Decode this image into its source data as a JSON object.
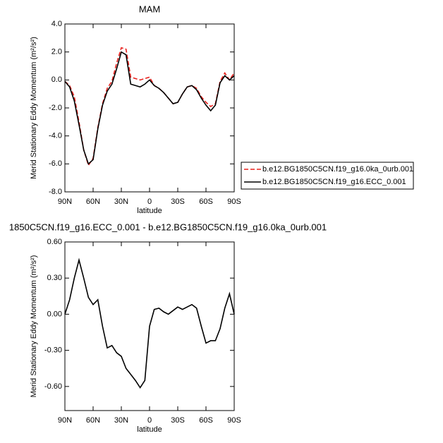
{
  "chart_data": [
    {
      "type": "line",
      "title": "MAM",
      "xlabel": "latitude",
      "ylabel": "Merid Stationary Eddy Momentum (m²/s²)",
      "x": [
        90,
        85,
        80,
        75,
        70,
        65,
        60,
        55,
        50,
        45,
        40,
        35,
        30,
        25,
        20,
        15,
        10,
        5,
        0,
        -5,
        -10,
        -15,
        -20,
        -25,
        -30,
        -35,
        -40,
        -45,
        -50,
        -55,
        -60,
        -65,
        -70,
        -75,
        -80,
        -85,
        -90
      ],
      "xlim": [
        90,
        -90
      ],
      "xticks": [
        {
          "value": 90,
          "label": "90N"
        },
        {
          "value": 60,
          "label": "60N"
        },
        {
          "value": 30,
          "label": "30N"
        },
        0,
        {
          "value": -30,
          "label": "30S"
        },
        {
          "value": -60,
          "label": "60S"
        },
        {
          "value": -90,
          "label": "90S"
        }
      ],
      "ylim": [
        -8,
        4
      ],
      "yticks": [
        {
          "value": -8,
          "label": "-8.0"
        },
        {
          "value": -6,
          "label": "-6.0"
        },
        {
          "value": -4,
          "label": "-4.0"
        },
        {
          "value": -2,
          "label": "-2.0"
        },
        {
          "value": 0,
          "label": "0.0"
        },
        {
          "value": 2,
          "label": "2.0"
        },
        {
          "value": 4,
          "label": "4.0"
        }
      ],
      "legend": "outside-right-bottom",
      "series": [
        {
          "name": "b.e12.BG1850C5CN.f19_g16.0ka_0urb.001",
          "color": "#e8201c",
          "style": "dashed",
          "values": [
            -0.1,
            -0.4,
            -1.2,
            -3.0,
            -5.0,
            -6.1,
            -5.6,
            -3.4,
            -1.7,
            -0.6,
            -0.1,
            1.2,
            2.3,
            2.2,
            0.2,
            0.1,
            0.0,
            0.1,
            0.2,
            -0.4,
            -0.6,
            -0.9,
            -1.3,
            -1.7,
            -1.6,
            -1.0,
            -0.5,
            -0.4,
            -0.6,
            -1.2,
            -1.6,
            -1.9,
            -1.7,
            -0.1,
            0.5,
            0.0,
            0.5
          ]
        },
        {
          "name": "b.e12.BG1850C5CN.f19_g16.ECC_0.001",
          "color": "#000000",
          "style": "solid",
          "values": [
            -0.1,
            -0.5,
            -1.5,
            -3.2,
            -5.0,
            -6.0,
            -5.7,
            -3.5,
            -1.8,
            -0.8,
            -0.3,
            0.8,
            2.0,
            1.8,
            -0.3,
            -0.4,
            -0.5,
            -0.3,
            0.0,
            -0.4,
            -0.6,
            -0.9,
            -1.3,
            -1.7,
            -1.6,
            -1.0,
            -0.5,
            -0.4,
            -0.7,
            -1.3,
            -1.8,
            -2.2,
            -1.8,
            -0.2,
            0.3,
            0.0,
            0.3
          ]
        }
      ]
    },
    {
      "type": "line",
      "title": "1850C5CN.f19_g16.ECC_0.001 - b.e12.BG1850C5CN.f19_g16.0ka_0urb.001",
      "xlabel": "latitude",
      "ylabel": "Merid Stationary Eddy Momentum (m²/s²)",
      "x": [
        90,
        85,
        80,
        75,
        70,
        65,
        60,
        55,
        50,
        45,
        40,
        35,
        30,
        25,
        20,
        15,
        10,
        5,
        0,
        -5,
        -10,
        -15,
        -20,
        -25,
        -30,
        -35,
        -40,
        -45,
        -50,
        -55,
        -60,
        -65,
        -70,
        -75,
        -80,
        -85,
        -90
      ],
      "xlim": [
        90,
        -90
      ],
      "xticks": [
        {
          "value": 90,
          "label": "90N"
        },
        {
          "value": 60,
          "label": "60N"
        },
        {
          "value": 30,
          "label": "30N"
        },
        0,
        {
          "value": -30,
          "label": "30S"
        },
        {
          "value": -60,
          "label": "60S"
        },
        {
          "value": -90,
          "label": "90S"
        }
      ],
      "ylim": [
        -0.8,
        0.6
      ],
      "yticks": [
        {
          "value": -0.6,
          "label": "-0.60"
        },
        {
          "value": -0.3,
          "label": "-0.30"
        },
        {
          "value": 0,
          "label": "0.00"
        },
        {
          "value": 0.3,
          "label": "0.30"
        },
        {
          "value": 0.6,
          "label": "0.60"
        }
      ],
      "series": [
        {
          "color": "#000000",
          "style": "solid",
          "values": [
            0.0,
            0.12,
            0.3,
            0.45,
            0.3,
            0.14,
            0.08,
            0.12,
            -0.1,
            -0.28,
            -0.26,
            -0.32,
            -0.35,
            -0.45,
            -0.5,
            -0.55,
            -0.61,
            -0.55,
            -0.1,
            0.04,
            0.05,
            0.02,
            0.0,
            0.03,
            0.06,
            0.04,
            0.06,
            0.08,
            0.05,
            -0.1,
            -0.24,
            -0.22,
            -0.22,
            -0.12,
            0.05,
            0.17,
            0.0
          ]
        }
      ]
    }
  ]
}
